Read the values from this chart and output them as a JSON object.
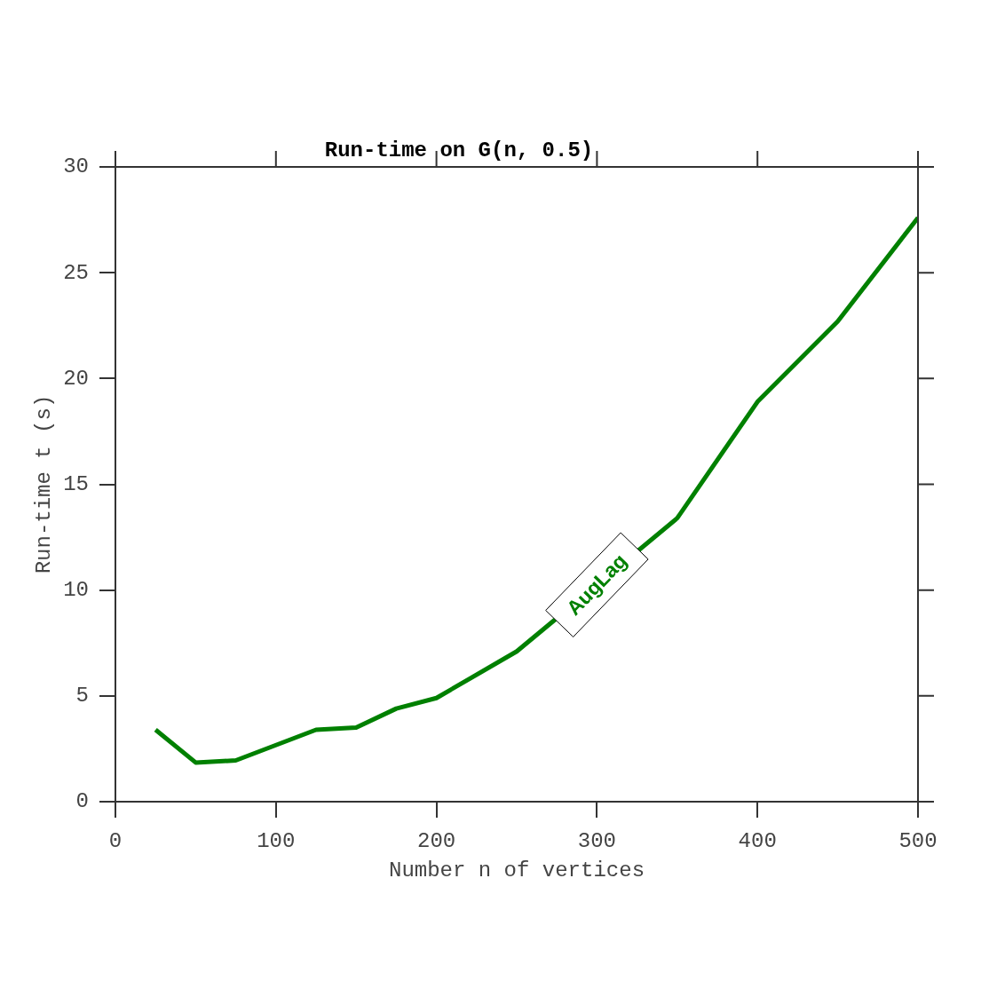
{
  "chart_data": {
    "type": "line",
    "title": "Run-time on G(n, 0.5)",
    "xlabel": "Number n of vertices",
    "ylabel": "Run-time t (s)",
    "x": [
      25,
      50,
      75,
      125,
      150,
      175,
      200,
      250,
      300,
      350,
      400,
      450,
      500
    ],
    "series": [
      {
        "name": "AugLag",
        "color": "#008000",
        "values": [
          3.4,
          1.85,
          1.95,
          3.4,
          3.5,
          4.4,
          4.9,
          7.1,
          null,
          13.4,
          18.9,
          22.7,
          27.6
        ]
      }
    ],
    "xlim": [
      0,
      500
    ],
    "xticks": [
      0,
      100,
      200,
      300,
      400,
      500
    ],
    "ylim": [
      0,
      30
    ],
    "yticks": [
      0,
      5,
      10,
      15,
      20,
      25,
      30
    ],
    "marker": "none",
    "line_style": "solid"
  }
}
